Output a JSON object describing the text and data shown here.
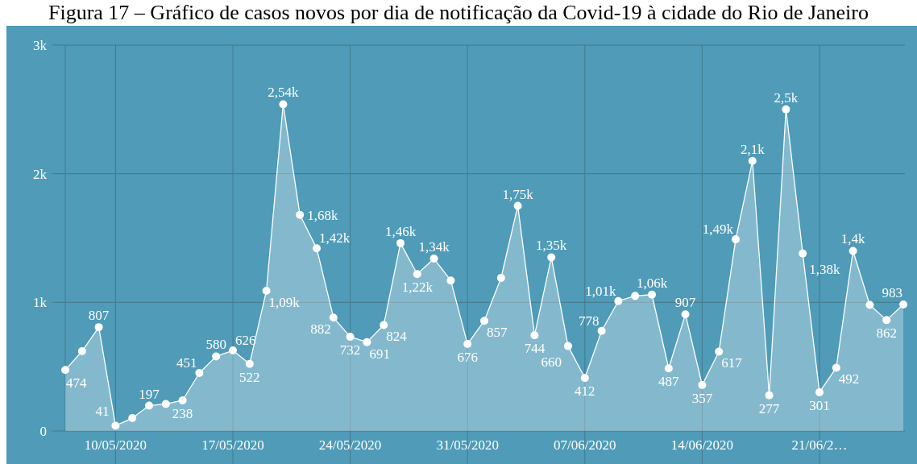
{
  "chart_data": {
    "type": "area",
    "title": "Figura 17 – Gráfico de casos novos por dia de notificação da Covid-19 à cidade do Rio de Janeiro",
    "x": [
      "2020-05-07",
      "2020-05-08",
      "2020-05-09",
      "2020-05-10",
      "2020-05-11",
      "2020-05-12",
      "2020-05-13",
      "2020-05-14",
      "2020-05-15",
      "2020-05-16",
      "2020-05-17",
      "2020-05-18",
      "2020-05-19",
      "2020-05-20",
      "2020-05-21",
      "2020-05-22",
      "2020-05-23",
      "2020-05-24",
      "2020-05-25",
      "2020-05-26",
      "2020-05-27",
      "2020-05-28",
      "2020-05-29",
      "2020-05-30",
      "2020-05-31",
      "2020-06-01",
      "2020-06-02",
      "2020-06-03",
      "2020-06-04",
      "2020-06-05",
      "2020-06-06",
      "2020-06-07",
      "2020-06-08",
      "2020-06-09",
      "2020-06-10",
      "2020-06-11",
      "2020-06-12",
      "2020-06-13",
      "2020-06-14",
      "2020-06-15",
      "2020-06-16",
      "2020-06-17",
      "2020-06-18",
      "2020-06-19",
      "2020-06-20",
      "2020-06-21",
      "2020-06-22",
      "2020-06-23",
      "2020-06-24",
      "2020-06-25",
      "2020-06-26"
    ],
    "values": [
      474,
      620,
      807,
      41,
      100,
      197,
      210,
      238,
      451,
      580,
      626,
      522,
      1090,
      2540,
      1680,
      1420,
      882,
      732,
      691,
      824,
      1460,
      1220,
      1340,
      1170,
      676,
      857,
      1190,
      1750,
      744,
      1350,
      660,
      412,
      778,
      1010,
      1050,
      1060,
      487,
      907,
      357,
      617,
      1490,
      2100,
      277,
      2500,
      1380,
      301,
      492,
      1400,
      980,
      862,
      983
    ],
    "value_labels": [
      "474",
      null,
      "807",
      "41",
      null,
      "197",
      null,
      "238",
      "451",
      "580",
      "626",
      "522",
      "1,09k",
      "2,54k",
      "1,68k",
      "1,42k",
      "882",
      "732",
      "691",
      "824",
      "1,46k",
      "1,22k",
      "1,34k",
      null,
      "676",
      "857",
      null,
      "1,75k",
      "744",
      "1,35k",
      "660",
      "412",
      "778",
      "1,01k",
      null,
      "1,06k",
      "487",
      "907",
      "357",
      "617",
      "1,49k",
      "2,1k",
      "277",
      "2,5k",
      "1,38k",
      "301",
      "492",
      "1,4k",
      null,
      "862",
      "983"
    ],
    "color": "#ffffff",
    "marker": "circle",
    "grid": true,
    "xlim": [
      "2020-05-07",
      "2020-06-26"
    ],
    "xticks": [
      {
        "value": "2020-05-10",
        "label": "10/05/2020"
      },
      {
        "value": "2020-05-17",
        "label": "17/05/2020"
      },
      {
        "value": "2020-05-24",
        "label": "24/05/2020"
      },
      {
        "value": "2020-05-31",
        "label": "31/05/2020"
      },
      {
        "value": "2020-06-07",
        "label": "07/06/2020"
      },
      {
        "value": "2020-06-14",
        "label": "14/06/2020"
      },
      {
        "value": "2020-06-21",
        "label": "21/06/2…"
      }
    ],
    "ylim": [
      0,
      3000
    ],
    "yticks": [
      0,
      {
        "value": 1000,
        "label": "1k"
      },
      {
        "value": 2000,
        "label": "2k"
      },
      {
        "value": 3000,
        "label": "3k"
      }
    ]
  }
}
